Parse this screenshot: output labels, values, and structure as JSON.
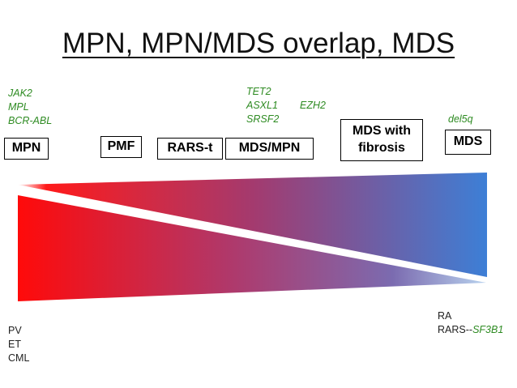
{
  "title": "MPN, MPN/MDS overlap, MDS",
  "boxes": {
    "mpn": "MPN",
    "pmf": "PMF",
    "rars_t": "RARS-t",
    "mds_mpn": "MDS/MPN",
    "mds_fibrosis_line1": "MDS with",
    "mds_fibrosis_line2": "fibrosis",
    "mds": "MDS"
  },
  "genes": {
    "mpn": [
      "JAK2",
      "MPL",
      "BCR-ABL"
    ],
    "overlap": [
      "TET2",
      "ASXL1",
      "SRSF2"
    ],
    "overlap_extra": "EZH2",
    "mds": "del5q"
  },
  "notes": {
    "left": [
      "PV",
      "ET",
      "CML"
    ],
    "right_line1": "RA",
    "right_line2_prefix": "RARS--",
    "right_line2_gene": "SF3B1"
  },
  "colors": {
    "red": "#ff1010",
    "blue": "#3d7fd6",
    "gene_green": "#2e8b22"
  }
}
